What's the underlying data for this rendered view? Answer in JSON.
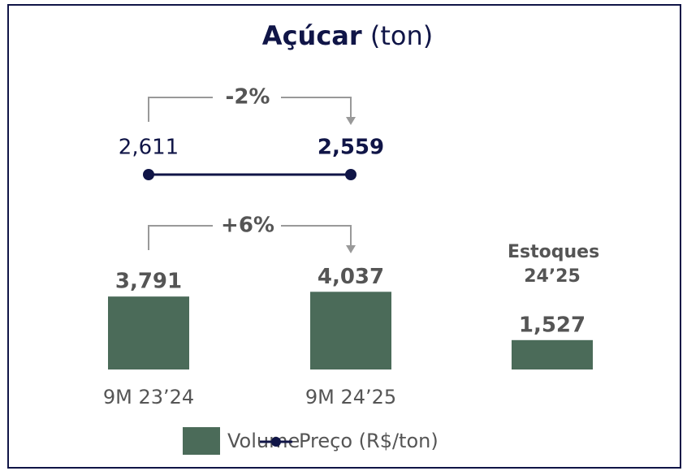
{
  "chart_data": {
    "type": "bar",
    "title": "Açúcar",
    "subtitle": "(ton)",
    "categories": [
      "9M 23’24",
      "9M 24’25",
      "Estoques 24’25"
    ],
    "series": [
      {
        "name": "Volume",
        "color": "#4b6b59",
        "values": [
          3791,
          4037,
          1527
        ],
        "value_labels": [
          "3,791",
          "4,037",
          "1,527"
        ]
      },
      {
        "name": "Preço (R$/ton)",
        "color": "#101547",
        "type": "line",
        "values": [
          2611,
          2559,
          null
        ],
        "value_labels": [
          "2,611",
          "2,559",
          null
        ]
      }
    ],
    "annotations": [
      "-2%",
      "+6%"
    ]
  }
}
